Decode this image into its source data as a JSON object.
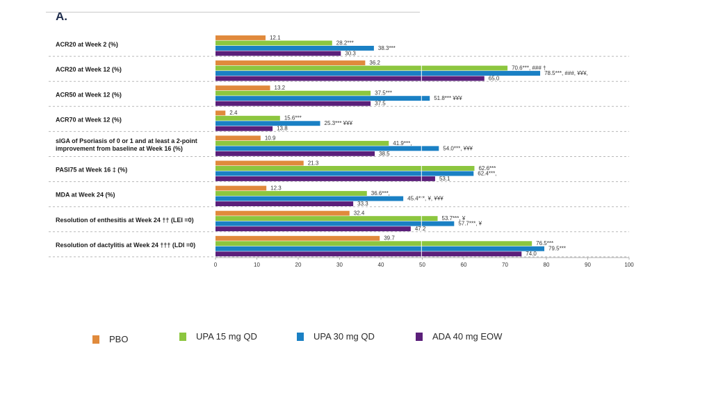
{
  "panel_label": "A.",
  "colors": {
    "PBO": "#e08a3c",
    "UPA 15 mg QD": "#8cc63f",
    "UPA 30 mg QD": "#1a80c4",
    "ADA 40 mg EOW": "#5b1f7a"
  },
  "chart_data": {
    "type": "bar",
    "orientation": "horizontal",
    "xlim": [
      0,
      100
    ],
    "xticks": [
      "0",
      "10",
      "20",
      "30",
      "40",
      "50",
      "60",
      "70",
      "80",
      "90",
      "100"
    ],
    "grid": false,
    "legend_placement": "bottom",
    "categories": [
      "ACR20 at Week 2 (%)",
      "ACR20 at Week 12 (%)",
      "ACR50 at Week 12 (%)",
      "ACR70 at Week 12 (%)",
      "sIGA of Psoriasis of 0 or 1 and at least a 2-point improvement from baseline at Week 16 (%)",
      "PASI75 at Week 16 ‡ (%)",
      "MDA at Week 24 (%)",
      "Resolution of enthesitis at Week 24 †† (LEI =0)",
      "Resolution of dactylitis at Week 24 ††† (LDI =0)"
    ],
    "category_lines": [
      [
        "ACR20 at Week 2 (%)"
      ],
      [
        "ACR20 at Week 12 (%)"
      ],
      [
        "ACR50 at Week 12 (%)"
      ],
      [
        "ACR70 at Week 12 (%)"
      ],
      [
        "sIGA of Psoriasis of 0 or 1 and at least a 2-point",
        "improvement from baseline at Week 16 (%)"
      ],
      [
        "PASI75 at Week 16 ‡ (%)"
      ],
      [
        "MDA at Week 24 (%)"
      ],
      [
        "Resolution of enthesitis at Week 24 †† (LEI =0)"
      ],
      [
        "Resolution of dactylitis at Week 24 ††† (LDI =0)"
      ]
    ],
    "series": [
      {
        "name": "PBO",
        "values": [
          12.1,
          36.2,
          13.2,
          2.4,
          10.9,
          21.3,
          12.3,
          32.4,
          39.7
        ],
        "labels": [
          "12.1",
          "36.2",
          "13.2",
          "2.4",
          "10.9",
          "21.3",
          "12.3",
          "32.4",
          "39.7"
        ]
      },
      {
        "name": "UPA 15 mg QD",
        "values": [
          28.2,
          70.6,
          37.5,
          15.6,
          41.9,
          62.6,
          36.6,
          53.7,
          76.5
        ],
        "labels": [
          "28.2***",
          "70.6***, ### †",
          "37.5***",
          "15.6***",
          "41.9***,",
          "62.6***",
          "36.6***,",
          "53.7***, ¥",
          "76.5***"
        ]
      },
      {
        "name": "UPA 30 mg QD",
        "values": [
          38.3,
          78.5,
          51.8,
          25.3,
          54.0,
          62.4,
          45.4,
          57.7,
          79.5
        ],
        "labels": [
          "38.3***",
          "78.5***, ###, ¥¥¥,",
          "51.8*** ¥¥¥",
          "25.3*** ¥¥¥",
          "54.0***, ¥¥¥",
          "62.4***,",
          "45.4***, ¥, ¥¥¥",
          "57.7***, ¥",
          "79.5***"
        ]
      },
      {
        "name": "ADA 40 mg EOW",
        "values": [
          30.3,
          65.0,
          37.5,
          13.8,
          38.5,
          53.1,
          33.3,
          47.2,
          74.0
        ],
        "labels": [
          "30.3",
          "65.0",
          "37.5",
          "13.8",
          "38.5",
          "53.1",
          "33.3",
          "47.2",
          "74.0"
        ]
      }
    ]
  },
  "legend": {
    "items": [
      "PBO",
      "UPA 15 mg QD",
      "UPA 30 mg QD",
      "ADA 40 mg EOW"
    ]
  }
}
